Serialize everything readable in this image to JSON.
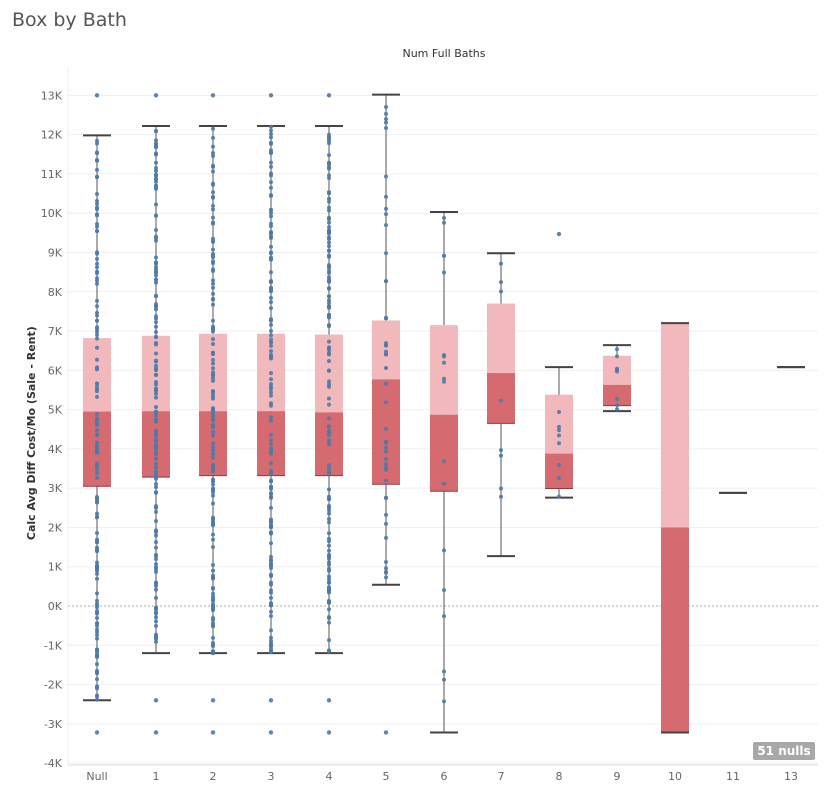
{
  "chart_data": {
    "type": "box",
    "title": "Box by Bath",
    "column_header": "Num Full Baths",
    "ylabel": "Calc Avg Diff Cost/Mo (Sale - Rent)",
    "ylim": [
      -4200,
      13400
    ],
    "yticks": [
      -4000,
      -3000,
      -2000,
      -1000,
      0,
      1000,
      2000,
      3000,
      4000,
      5000,
      6000,
      7000,
      8000,
      9000,
      10000,
      11000,
      12000,
      13000
    ],
    "ytick_labels": [
      "-4K",
      "-3K",
      "-2K",
      "-1K",
      "0K",
      "1K",
      "2K",
      "3K",
      "4K",
      "5K",
      "6K",
      "7K",
      "8K",
      "9K",
      "10K",
      "11K",
      "12K",
      "13K"
    ],
    "categories": [
      "Null",
      "1",
      "2",
      "3",
      "4",
      "5",
      "6",
      "7",
      "8",
      "9",
      "10",
      "11",
      "13"
    ],
    "boxes": [
      {
        "category": "Null",
        "whisker_low": -2400,
        "q1": 3050,
        "median": 4950,
        "q3": 6820,
        "whisker_high": 11980,
        "outliers": [
          13000,
          -3220
        ]
      },
      {
        "category": "1",
        "whisker_low": -1200,
        "q1": 3280,
        "median": 4960,
        "q3": 6880,
        "whisker_high": 12220,
        "outliers": [
          13000,
          -2400,
          -3220
        ]
      },
      {
        "category": "2",
        "whisker_low": -1200,
        "q1": 3320,
        "median": 4960,
        "q3": 6930,
        "whisker_high": 12220,
        "outliers": [
          13000,
          -2400,
          -3220
        ]
      },
      {
        "category": "3",
        "whisker_low": -1200,
        "q1": 3320,
        "median": 4960,
        "q3": 6930,
        "whisker_high": 12220,
        "outliers": [
          13000,
          -2400,
          -3220
        ]
      },
      {
        "category": "4",
        "whisker_low": -1200,
        "q1": 3320,
        "median": 4930,
        "q3": 6910,
        "whisker_high": 12220,
        "outliers": [
          13000,
          -2400,
          -3220
        ]
      },
      {
        "category": "5",
        "whisker_low": 540,
        "q1": 3100,
        "median": 5770,
        "q3": 7270,
        "whisker_high": 13020,
        "outliers": [
          -3220
        ]
      },
      {
        "category": "6",
        "whisker_low": -3220,
        "q1": 2920,
        "median": 4870,
        "q3": 7150,
        "whisker_high": 10030,
        "outliers": []
      },
      {
        "category": "7",
        "whisker_low": 1270,
        "q1": 4650,
        "median": 5930,
        "q3": 7700,
        "whisker_high": 8980,
        "outliers": []
      },
      {
        "category": "8",
        "whisker_low": 2760,
        "q1": 2990,
        "median": 3880,
        "q3": 5380,
        "whisker_high": 6080,
        "outliers": [
          9470
        ]
      },
      {
        "category": "9",
        "whisker_low": 4960,
        "q1": 5100,
        "median": 5630,
        "q3": 6370,
        "whisker_high": 6640,
        "outliers": []
      },
      {
        "category": "10",
        "whisker_low": -3220,
        "q1": -3220,
        "median": 2000,
        "q3": 7200,
        "whisker_high": 7200,
        "outliers": []
      },
      {
        "category": "11",
        "whisker_low": 2880,
        "q1": 2880,
        "median": 2880,
        "q3": 2880,
        "whisker_high": 2880,
        "outliers": []
      },
      {
        "category": "13",
        "whisker_low": 6080,
        "q1": 6080,
        "median": 6080,
        "q3": 6080,
        "whisker_high": 6080,
        "outliers": []
      }
    ],
    "colors": {
      "lower_box": "#d56a70",
      "upper_box": "#f1b9bb",
      "points": "#4e79a7"
    },
    "null_badge": "51 nulls",
    "grid": true
  }
}
